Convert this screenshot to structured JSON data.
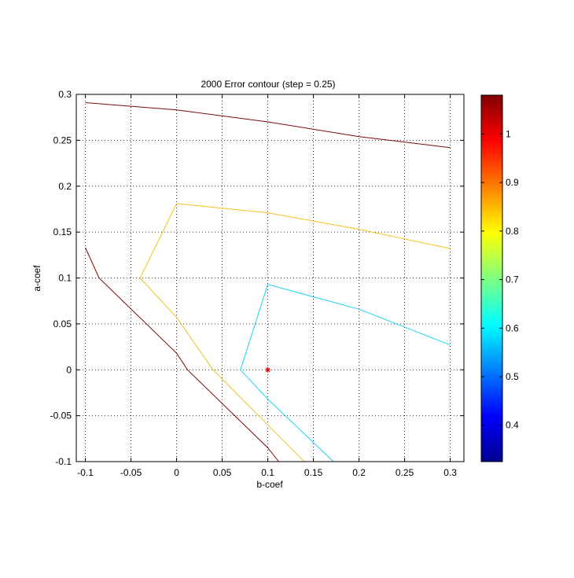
{
  "chart_data": {
    "type": "contour",
    "title": "2000 Error contour (step = 0.25)",
    "xlabel": "b-coef",
    "ylabel": "a-coef",
    "xlim": [
      -0.11,
      0.315
    ],
    "ylim": [
      -0.1,
      0.3
    ],
    "xticks": [
      -0.1,
      -0.05,
      0,
      0.05,
      0.1,
      0.15,
      0.2,
      0.25,
      0.3
    ],
    "xtick_labels": [
      "-0.1",
      "-0.05",
      "0",
      "0.05",
      "0.1",
      "0.15",
      "0.2",
      "0.25",
      "0.3"
    ],
    "yticks": [
      -0.1,
      -0.05,
      0,
      0.05,
      0.1,
      0.15,
      0.2,
      0.25,
      0.3
    ],
    "ytick_labels": [
      "-0.1",
      "-0.05",
      "0",
      "0.05",
      "0.1",
      "0.15",
      "0.2",
      "0.25",
      "0.3"
    ],
    "grid": true,
    "grid_style": "dotted",
    "contours": [
      {
        "level": 0.56,
        "color": "#1ad4f0",
        "segments": [
          [
            [
              0.1,
              0.093
            ],
            [
              0.2,
              0.066
            ],
            [
              0.3,
              0.027
            ]
          ],
          [
            [
              0.1,
              0.093
            ],
            [
              0.07,
              0.0
            ],
            [
              0.1,
              -0.032
            ],
            [
              0.172,
              -0.1
            ]
          ]
        ]
      },
      {
        "level": 0.81,
        "color": "#f5c01e",
        "segments": [
          [
            [
              0.0,
              0.181
            ],
            [
              0.1,
              0.171
            ],
            [
              0.2,
              0.153
            ],
            [
              0.3,
              0.132
            ]
          ],
          [
            [
              0.0,
              0.181
            ],
            [
              -0.04,
              0.1
            ],
            [
              0.0,
              0.057
            ],
            [
              0.04,
              0.0
            ],
            [
              0.1,
              -0.06
            ],
            [
              0.14,
              -0.1
            ]
          ]
        ]
      },
      {
        "level": 1.06,
        "color": "#7a0a0a",
        "segments": [
          [
            [
              -0.1,
              0.291
            ],
            [
              0.0,
              0.283
            ],
            [
              0.1,
              0.27
            ],
            [
              0.2,
              0.254
            ],
            [
              0.3,
              0.242
            ]
          ],
          [
            [
              -0.1,
              0.133
            ],
            [
              -0.085,
              0.1
            ],
            [
              0.0,
              0.018
            ],
            [
              0.012,
              0.0
            ],
            [
              0.1,
              -0.085
            ],
            [
              0.112,
              -0.1
            ]
          ]
        ]
      }
    ],
    "marker": {
      "x": 0.1,
      "y": 0.0,
      "symbol": "*",
      "color": "#cc0000"
    },
    "colorbar": {
      "colormap": "jet",
      "range": [
        0.325,
        1.08
      ],
      "ticks": [
        0.4,
        0.5,
        0.6,
        0.7,
        0.8,
        0.9,
        1
      ],
      "tick_labels": [
        "0.4",
        "0.5",
        "0.6",
        "0.7",
        "0.8",
        "0.9",
        "1"
      ]
    }
  }
}
